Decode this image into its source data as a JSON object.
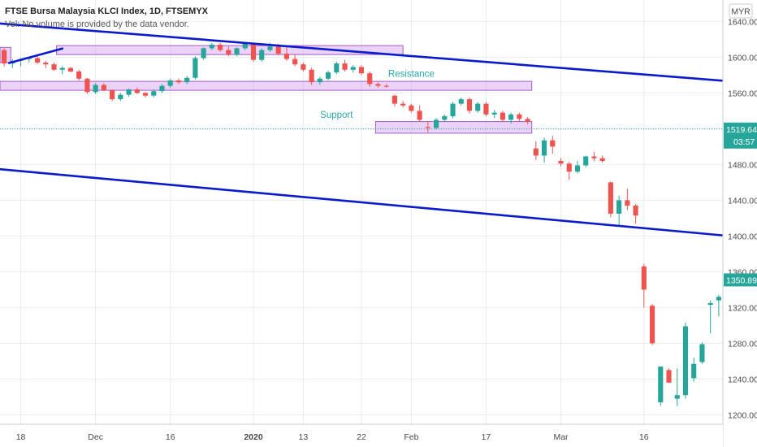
{
  "chart_data": {
    "type": "candlestick",
    "title": "FTSE Bursa Malaysia KLCI Index, 1D, FTSEMYX",
    "volume_note": "Vol: No volume is provided by the data vendor.",
    "currency": "MYR",
    "y_ticks": [
      1640,
      1600,
      1560,
      1520,
      1480,
      1440,
      1400,
      1360,
      1320,
      1280,
      1240,
      1200
    ],
    "ylim": [
      1164,
      1664
    ],
    "x_range": [
      -0.5,
      86.5
    ],
    "x_ticks": [
      {
        "label": "18",
        "i": 2
      },
      {
        "label": "Dec",
        "i": 11
      },
      {
        "label": "16",
        "i": 20
      },
      {
        "label": "2020",
        "i": 30,
        "bold": true
      },
      {
        "label": "13",
        "i": 36
      },
      {
        "label": "22",
        "i": 43
      },
      {
        "label": "Feb",
        "i": 49
      },
      {
        "label": "17",
        "i": 58
      },
      {
        "label": "Mar",
        "i": 67
      },
      {
        "label": "16",
        "i": 77
      }
    ],
    "candles": [
      [
        1608,
        1610,
        1590,
        1593
      ],
      [
        1593,
        1598,
        1588,
        1596
      ],
      [
        1596,
        1599,
        1590,
        1598
      ],
      [
        1598,
        1600,
        1594,
        1599
      ],
      [
        1599,
        1601,
        1592,
        1594
      ],
      [
        1594,
        1596,
        1588,
        1592
      ],
      [
        1592,
        1594,
        1585,
        1586
      ],
      [
        1586,
        1590,
        1581,
        1588
      ],
      [
        1588,
        1589,
        1583,
        1584
      ],
      [
        1584,
        1586,
        1574,
        1576
      ],
      [
        1576,
        1577,
        1559,
        1561
      ],
      [
        1561,
        1571,
        1559,
        1569
      ],
      [
        1569,
        1571,
        1562,
        1563
      ],
      [
        1563,
        1564,
        1551,
        1553
      ],
      [
        1553,
        1560,
        1551,
        1558
      ],
      [
        1558,
        1565,
        1556,
        1564
      ],
      [
        1564,
        1566,
        1559,
        1560
      ],
      [
        1560,
        1561,
        1555,
        1557
      ],
      [
        1557,
        1564,
        1555,
        1562
      ],
      [
        1562,
        1570,
        1560,
        1568
      ],
      [
        1568,
        1576,
        1566,
        1574
      ],
      [
        1574,
        1576,
        1570,
        1572
      ],
      [
        1572,
        1579,
        1570,
        1577
      ],
      [
        1577,
        1601,
        1575,
        1599
      ],
      [
        1599,
        1611,
        1597,
        1610
      ],
      [
        1610,
        1616,
        1608,
        1614
      ],
      [
        1614,
        1616,
        1606,
        1608
      ],
      [
        1608,
        1612,
        1601,
        1603
      ],
      [
        1603,
        1611,
        1601,
        1610
      ],
      [
        1610,
        1617,
        1608,
        1615
      ],
      [
        1615,
        1616,
        1595,
        1597
      ],
      [
        1597,
        1610,
        1595,
        1608
      ],
      [
        1608,
        1616,
        1606,
        1612
      ],
      [
        1612,
        1615,
        1602,
        1604
      ],
      [
        1604,
        1612,
        1596,
        1598
      ],
      [
        1598,
        1603,
        1590,
        1592
      ],
      [
        1592,
        1594,
        1584,
        1586
      ],
      [
        1586,
        1588,
        1569,
        1572
      ],
      [
        1572,
        1578,
        1569,
        1576
      ],
      [
        1576,
        1585,
        1574,
        1583
      ],
      [
        1583,
        1595,
        1581,
        1593
      ],
      [
        1593,
        1597,
        1584,
        1586
      ],
      [
        1586,
        1591,
        1583,
        1589
      ],
      [
        1589,
        1591,
        1580,
        1582
      ],
      [
        1582,
        1584,
        1567,
        1570
      ],
      [
        1570,
        1572,
        1566,
        1568
      ],
      [
        1568,
        1570,
        1566,
        1567
      ],
      [
        1557,
        1558,
        1545,
        1548
      ],
      [
        1548,
        1551,
        1544,
        1546
      ],
      [
        1546,
        1548,
        1538,
        1540
      ],
      [
        1540,
        1546,
        1528,
        1530
      ],
      [
        1522,
        1528,
        1516,
        1521
      ],
      [
        1521,
        1532,
        1519,
        1530
      ],
      [
        1530,
        1536,
        1528,
        1534
      ],
      [
        1534,
        1550,
        1532,
        1548
      ],
      [
        1548,
        1555,
        1546,
        1553
      ],
      [
        1553,
        1555,
        1537,
        1540
      ],
      [
        1540,
        1550,
        1538,
        1548
      ],
      [
        1548,
        1550,
        1534,
        1536
      ],
      [
        1536,
        1541,
        1532,
        1538
      ],
      [
        1538,
        1540,
        1528,
        1530
      ],
      [
        1530,
        1538,
        1526,
        1536
      ],
      [
        1536,
        1538,
        1528,
        1531
      ],
      [
        1531,
        1533,
        1525,
        1528
      ],
      [
        1498,
        1506,
        1485,
        1490
      ],
      [
        1490,
        1510,
        1482,
        1507
      ],
      [
        1507,
        1512,
        1492,
        1500
      ],
      [
        1484,
        1487,
        1478,
        1481
      ],
      [
        1481,
        1483,
        1463,
        1472
      ],
      [
        1472,
        1484,
        1470,
        1479
      ],
      [
        1479,
        1490,
        1477,
        1489
      ],
      [
        1489,
        1494,
        1484,
        1487
      ],
      [
        1487,
        1490,
        1482,
        1484
      ],
      [
        1460,
        1461,
        1421,
        1425
      ],
      [
        1425,
        1445,
        1412,
        1440
      ],
      [
        1440,
        1453,
        1429,
        1434
      ],
      [
        1434,
        1436,
        1414,
        1423
      ],
      [
        1366,
        1369,
        1320,
        1340
      ],
      [
        1322,
        1324,
        1278,
        1280
      ],
      [
        1214,
        1254,
        1210,
        1254
      ],
      [
        1250,
        1252,
        1240,
        1236
      ],
      [
        1218,
        1252,
        1210,
        1222
      ],
      [
        1222,
        1303,
        1218,
        1299
      ],
      [
        1241,
        1264,
        1237,
        1257
      ],
      [
        1259,
        1281,
        1257,
        1279
      ],
      [
        1323,
        1328,
        1291,
        1325
      ],
      [
        1328,
        1334,
        1310,
        1332
      ],
      [
        1333,
        1345,
        1330,
        1340
      ],
      [
        1340,
        1345,
        1318,
        1335
      ],
      [
        1335,
        1355,
        1330,
        1351
      ]
    ],
    "trend_lines": [
      {
        "points": [
          [
            -0.5,
            1637.7
          ],
          [
            86.5,
            1573.7
          ]
        ]
      },
      {
        "points": [
          [
            -0.5,
            1474.7
          ],
          [
            86.5,
            1400.7
          ]
        ]
      },
      {
        "points": [
          [
            0.6,
            1593.5
          ],
          [
            7,
            1609.7
          ]
        ]
      }
    ],
    "zones": [
      {
        "i0": 6.3,
        "i1": 48,
        "y0": 1603,
        "y1": 1613
      },
      {
        "i0": -0.5,
        "i1": 63.5,
        "y0": 1563,
        "y1": 1573
      },
      {
        "i0": 44.7,
        "i1": 63.5,
        "y0": 1515,
        "y1": 1528
      },
      {
        "i0": -0.5,
        "i1": 0.8,
        "y0": 1594,
        "y1": 1611
      }
    ],
    "annotations": [
      {
        "text": "Resistance",
        "i": 49,
        "y": 1578
      },
      {
        "text": "Support",
        "i": 40,
        "y": 1532
      }
    ],
    "current_price": 1350.89,
    "reference_price": 1519.64,
    "countdown": "03:57",
    "colors": {
      "up": "#26a69a",
      "down": "#ef5350",
      "trend": "#0b1bcc",
      "zone_fill": "rgba(200,140,235,0.38)",
      "zone_stroke": "#a45cc4",
      "grid": "#e9ebee",
      "annotation": "#2aa6ad",
      "reference_line": "#26a69a",
      "price_badge": "#26a69a"
    },
    "grid": true
  }
}
